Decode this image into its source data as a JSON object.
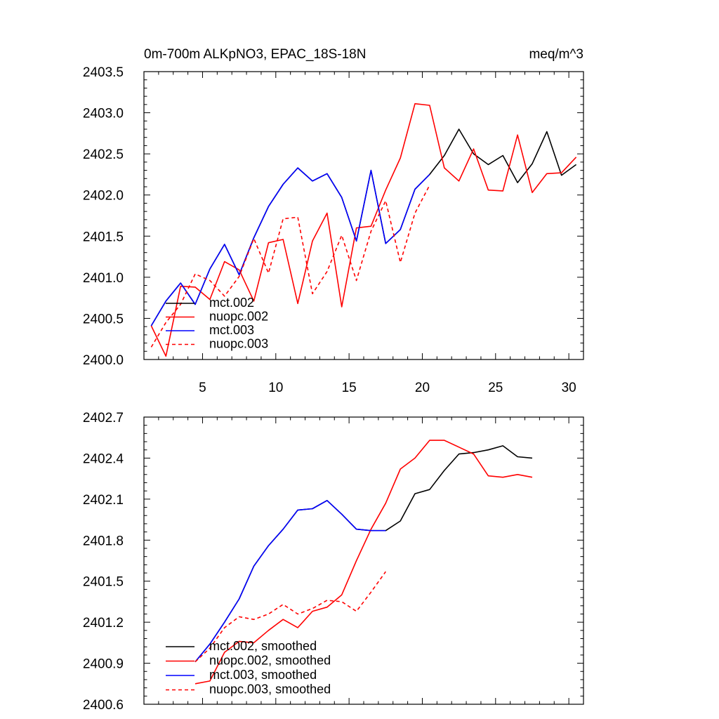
{
  "chart_data": [
    {
      "type": "line",
      "title": "0m-700m ALKpNO3, EPAC_18S-18N",
      "units": "meq/m^3",
      "xlim": [
        1,
        31
      ],
      "ylim": [
        2400.0,
        2403.5
      ],
      "xticks": [
        5,
        10,
        15,
        20,
        25,
        30
      ],
      "xtick_labels": [
        "5",
        "10",
        "15",
        "20",
        "25",
        "30"
      ],
      "yticks": [
        2400.0,
        2400.5,
        2401.0,
        2401.5,
        2402.0,
        2402.5,
        2403.0,
        2403.5
      ],
      "ytick_labels": [
        "2400.0",
        "2400.5",
        "2401.0",
        "2401.5",
        "2402.0",
        "2402.5",
        "2403.0",
        "2403.5"
      ],
      "legend": "bottom-left",
      "series": [
        {
          "name": "mct.002",
          "color": "#000000",
          "dash": false,
          "x": [
            1.5,
            2.5,
            3.5,
            4.5,
            5.5,
            6.5,
            7.5,
            8.5,
            9.5,
            10.5,
            11.5,
            12.5,
            13.5,
            14.5,
            15.5,
            16.5,
            17.5,
            18.5,
            19.5,
            20.5,
            21.5,
            22.5,
            23.5,
            24.5,
            25.5,
            26.5,
            27.5,
            28.5,
            29.5,
            30.5
          ],
          "values": [
            2400.41,
            2400.71,
            2400.93,
            2400.67,
            2401.1,
            2401.4,
            2401.03,
            2401.48,
            2401.86,
            2402.13,
            2402.33,
            2402.17,
            2402.26,
            2401.97,
            2401.44,
            2402.3,
            2401.41,
            2401.58,
            2402.07,
            2402.25,
            2402.48,
            2402.8,
            2402.5,
            2402.37,
            2402.48,
            2402.15,
            2402.38,
            2402.77,
            2402.24,
            2402.37
          ]
        },
        {
          "name": "nuopc.002",
          "color": "#ff0000",
          "dash": false,
          "x": [
            1.5,
            2.5,
            3.5,
            4.5,
            5.5,
            6.5,
            7.5,
            8.5,
            9.5,
            10.5,
            11.5,
            12.5,
            13.5,
            14.5,
            15.5,
            16.5,
            17.5,
            18.5,
            19.5,
            20.5,
            21.5,
            22.5,
            23.5,
            24.5,
            25.5,
            26.5,
            27.5,
            28.5,
            29.5,
            30.5
          ],
          "values": [
            2400.41,
            2400.04,
            2400.89,
            2400.88,
            2400.73,
            2401.19,
            2401.09,
            2400.71,
            2401.42,
            2401.46,
            2400.68,
            2401.44,
            2401.78,
            2400.64,
            2401.6,
            2401.62,
            2402.06,
            2402.45,
            2403.11,
            2403.09,
            2402.33,
            2402.17,
            2402.56,
            2402.06,
            2402.05,
            2402.73,
            2402.03,
            2402.26,
            2402.27,
            2402.46
          ]
        },
        {
          "name": "mct.003",
          "color": "#0000ff",
          "dash": false,
          "x": [
            1.5,
            2.5,
            3.5,
            4.5,
            5.5,
            6.5,
            7.5,
            8.5,
            9.5,
            10.5,
            11.5,
            12.5,
            13.5,
            14.5,
            15.5,
            16.5,
            17.5,
            18.5,
            19.5,
            20.5
          ],
          "values": [
            2400.41,
            2400.71,
            2400.93,
            2400.67,
            2401.1,
            2401.4,
            2401.03,
            2401.48,
            2401.86,
            2402.13,
            2402.33,
            2402.17,
            2402.26,
            2401.97,
            2401.44,
            2402.3,
            2401.41,
            2401.58,
            2402.07,
            2402.25
          ]
        },
        {
          "name": "nuopc.003",
          "color": "#ff0000",
          "dash": true,
          "x": [
            1.5,
            2.5,
            3.5,
            4.5,
            5.5,
            6.5,
            7.5,
            8.5,
            9.5,
            10.5,
            11.5,
            12.5,
            13.5,
            14.5,
            15.5,
            16.5,
            17.5,
            18.5,
            19.5,
            20.5
          ],
          "values": [
            2400.15,
            2400.45,
            2400.67,
            2401.04,
            2400.96,
            2400.77,
            2401.01,
            2401.47,
            2401.05,
            2401.71,
            2401.73,
            2400.8,
            2401.07,
            2401.51,
            2400.96,
            2401.56,
            2401.93,
            2401.18,
            2401.78,
            2402.12
          ]
        }
      ]
    },
    {
      "type": "line",
      "xlim": [
        1,
        31
      ],
      "ylim": [
        2400.6,
        2402.7
      ],
      "xticks": [
        5,
        10,
        15,
        20,
        25,
        30
      ],
      "yticks": [
        2400.6,
        2400.9,
        2401.2,
        2401.5,
        2401.8,
        2402.1,
        2402.4,
        2402.7
      ],
      "ytick_labels": [
        "2400.6",
        "2400.9",
        "2401.2",
        "2401.5",
        "2401.8",
        "2402.1",
        "2402.4",
        "2402.7"
      ],
      "legend": "bottom-left",
      "series": [
        {
          "name": "mct.002, smoothed",
          "color": "#000000",
          "dash": false,
          "x": [
            4.5,
            5.5,
            6.5,
            7.5,
            8.5,
            9.5,
            10.5,
            11.5,
            12.5,
            13.5,
            14.5,
            15.5,
            16.5,
            17.5,
            18.5,
            19.5,
            20.5,
            21.5,
            22.5,
            23.5,
            24.5,
            25.5,
            26.5,
            27.5
          ],
          "values": [
            2400.91,
            2401.04,
            2401.2,
            2401.37,
            2401.61,
            2401.76,
            2401.88,
            2402.02,
            2402.03,
            2402.09,
            2401.99,
            2401.88,
            2401.87,
            2401.87,
            2401.94,
            2402.14,
            2402.17,
            2402.31,
            2402.43,
            2402.44,
            2402.46,
            2402.49,
            2402.41,
            2402.4
          ]
        },
        {
          "name": "nuopc.002, smoothed",
          "color": "#ff0000",
          "dash": false,
          "x": [
            4.5,
            5.5,
            6.5,
            7.5,
            8.5,
            9.5,
            10.5,
            11.5,
            12.5,
            13.5,
            14.5,
            15.5,
            16.5,
            17.5,
            18.5,
            19.5,
            20.5,
            21.5,
            22.5,
            23.5,
            24.5,
            25.5,
            26.5,
            27.5
          ],
          "values": [
            2400.75,
            2400.77,
            2400.98,
            2401.06,
            2401.05,
            2401.14,
            2401.22,
            2401.16,
            2401.28,
            2401.31,
            2401.4,
            2401.65,
            2401.88,
            2402.07,
            2402.32,
            2402.4,
            2402.53,
            2402.53,
            2402.48,
            2402.43,
            2402.27,
            2402.26,
            2402.28,
            2402.26
          ]
        },
        {
          "name": "mct.003, smoothed",
          "color": "#0000ff",
          "dash": false,
          "x": [
            4.5,
            5.5,
            6.5,
            7.5,
            8.5,
            9.5,
            10.5,
            11.5,
            12.5,
            13.5,
            14.5,
            15.5,
            16.5,
            17.5
          ],
          "values": [
            2400.91,
            2401.04,
            2401.2,
            2401.37,
            2401.61,
            2401.76,
            2401.88,
            2402.02,
            2402.03,
            2402.09,
            2401.99,
            2401.88,
            2401.87,
            2401.87
          ]
        },
        {
          "name": "nuopc.003, smoothed",
          "color": "#ff0000",
          "dash": true,
          "x": [
            4.5,
            5.5,
            6.5,
            7.5,
            8.5,
            9.5,
            10.5,
            11.5,
            12.5,
            13.5,
            14.5,
            15.5,
            16.5,
            17.5
          ],
          "values": [
            2400.91,
            2401.01,
            2401.16,
            2401.24,
            2401.22,
            2401.26,
            2401.33,
            2401.26,
            2401.3,
            2401.36,
            2401.35,
            2401.28,
            2401.42,
            2401.57
          ]
        }
      ]
    }
  ]
}
